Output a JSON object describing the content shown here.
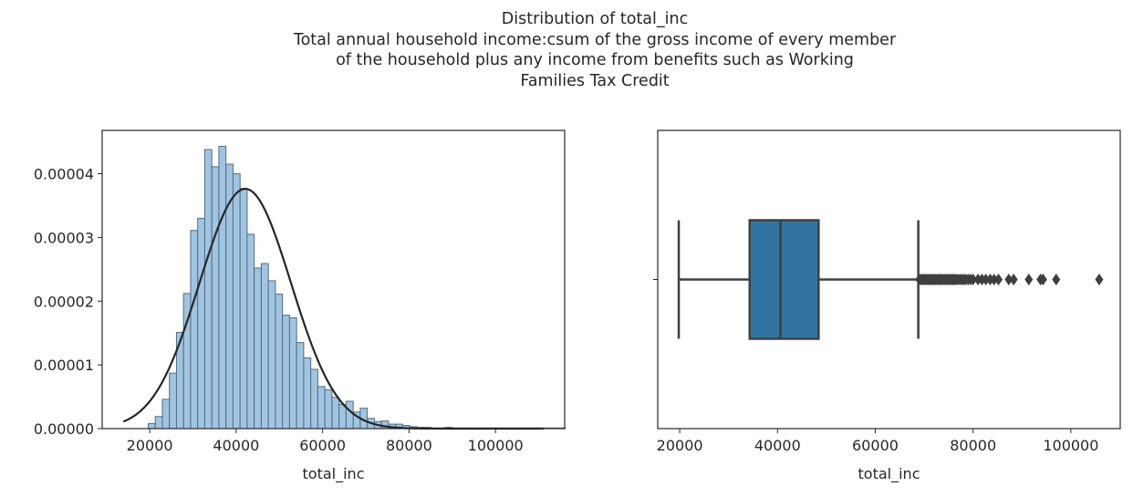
{
  "suptitle": [
    "Distribution of total_inc",
    "Total annual household income:csum of the gross income of every member",
    "of the household plus any income from benefits such as Working",
    "Families Tax Credit"
  ],
  "colors": {
    "hist_fill": "#a1c5e0",
    "hist_edge": "#4f6d86",
    "fit_line": "#262626",
    "box_fill": "#3274a1",
    "box_line": "#3f3f3f",
    "axes_edge": "#262626"
  },
  "chart_data": [
    {
      "type": "bar",
      "subtype": "histogram-with-normal-fit",
      "xlabel": "total_inc",
      "ylabel": "",
      "xlim": [
        9000,
        116000
      ],
      "ylim": [
        0,
        4.68e-05
      ],
      "xticks": [
        20000,
        40000,
        60000,
        80000,
        100000
      ],
      "xtick_labels": [
        "20000",
        "40000",
        "60000",
        "80000",
        "100000"
      ],
      "yticks": [
        0,
        1e-05,
        2e-05,
        3e-05,
        4e-05
      ],
      "ytick_labels": [
        "0.00000",
        "0.00001",
        "0.00002",
        "0.00003",
        "0.00004"
      ],
      "bin_start": 19650,
      "bin_width": 1635,
      "values": [
        8e-07,
        1.9e-06,
        4.6e-06,
        8.7e-06,
        1.51e-05,
        2.12e-05,
        3.11e-05,
        3.3e-05,
        4.38e-05,
        4.11e-05,
        4.43e-05,
        4.15e-05,
        4e-05,
        3.77e-05,
        3.05e-05,
        2.52e-05,
        2.59e-05,
        2.32e-05,
        2.11e-05,
        1.78e-05,
        1.74e-05,
        1.35e-05,
        1.11e-05,
        9.3e-06,
        6.6e-06,
        6.1e-06,
        4.9e-06,
        3.8e-06,
        4.3e-06,
        2.6e-06,
        3.2e-06,
        1.6e-06,
        1.1e-06,
        1.2e-06,
        7e-07,
        7e-07,
        5e-07,
        3e-07,
        2e-07,
        2e-07,
        1e-07,
        1e-07,
        2e-07,
        1e-07,
        1e-07,
        1e-07,
        1e-07,
        1e-07,
        1e-07,
        1e-07,
        1e-07,
        1e-07,
        1e-07,
        1e-07,
        1e-07,
        1e-07,
        1e-07,
        1e-07,
        1e-07
      ],
      "normal_fit": {
        "mean": 42100,
        "std": 10600,
        "x_range": [
          13900,
          111100
        ]
      }
    },
    {
      "type": "box",
      "orientation": "horizontal",
      "xlabel": "total_inc",
      "xlim": [
        15500,
        110100
      ],
      "xticks": [
        20000,
        40000,
        60000,
        80000,
        100000
      ],
      "xtick_labels": [
        "20000",
        "40000",
        "60000",
        "80000",
        "100000"
      ],
      "whisker_low": 19800,
      "q1": 34300,
      "median": 40600,
      "q3": 48400,
      "whisker_high": 68800,
      "outliers": [
        69000,
        69300,
        69600,
        69900,
        70200,
        70500,
        70800,
        71100,
        71400,
        71700,
        72000,
        72300,
        72600,
        72900,
        73200,
        73500,
        73800,
        74100,
        74400,
        74700,
        75000,
        75300,
        75600,
        75900,
        76200,
        76500,
        76900,
        77300,
        77700,
        78100,
        78500,
        79000,
        79500,
        80000,
        81000,
        81800,
        82600,
        83500,
        84300,
        85200,
        87300,
        88300,
        91400,
        93800,
        94300,
        97000,
        105800
      ]
    }
  ]
}
